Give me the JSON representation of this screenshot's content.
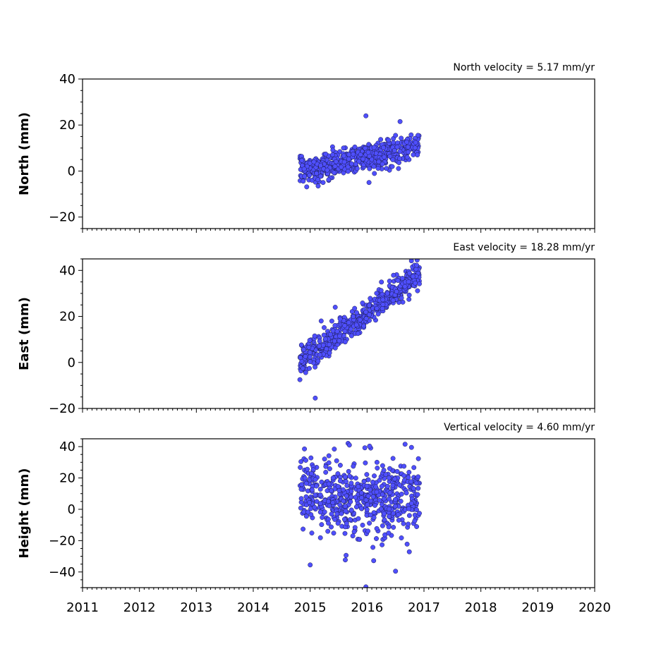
{
  "chart_data": [
    {
      "type": "scatter",
      "title": "North velocity = 5.17 mm/yr",
      "ylabel": "North (mm)",
      "xlabel": "",
      "xlim": [
        2011,
        2020
      ],
      "ylim": [
        -25,
        40
      ],
      "yticks": [
        -20,
        0,
        20,
        40
      ],
      "ytick_labels": [
        "−20",
        "0",
        "20",
        "40"
      ],
      "xticks": [
        2011,
        2012,
        2013,
        2014,
        2015,
        2016,
        2017,
        2018,
        2019,
        2020
      ],
      "velocity_mm_per_yr": 5.17,
      "noise_sd_mm": 3.0,
      "data_range_years": [
        2014.82,
        2016.92
      ],
      "outliers": [
        [
          2015.98,
          24
        ],
        [
          2016.58,
          21.5
        ],
        [
          2015.14,
          -6.5
        ]
      ],
      "marker_color": "#4f4fff"
    },
    {
      "type": "scatter",
      "title": "East velocity = 18.28 mm/yr",
      "ylabel": "East (mm)",
      "xlabel": "",
      "xlim": [
        2011,
        2020
      ],
      "ylim": [
        -20,
        45
      ],
      "yticks": [
        -20,
        0,
        20,
        40
      ],
      "ytick_labels": [
        "−20",
        "0",
        "20",
        "40"
      ],
      "xticks": [
        2011,
        2012,
        2013,
        2014,
        2015,
        2016,
        2017,
        2018,
        2019,
        2020
      ],
      "velocity_mm_per_yr": 18.28,
      "noise_sd_mm": 3.0,
      "data_range_years": [
        2014.82,
        2016.92
      ],
      "outliers": [
        [
          2015.09,
          -15.5
        ],
        [
          2016.88,
          44.5
        ],
        [
          2015.44,
          24
        ],
        [
          2014.82,
          -7.5
        ]
      ],
      "marker_color": "#4f4fff"
    },
    {
      "type": "scatter",
      "title": "Vertical velocity = 4.60 mm/yr",
      "ylabel": "Height (mm)",
      "xlabel": "",
      "xlim": [
        2011,
        2020
      ],
      "ylim": [
        -50,
        45
      ],
      "yticks": [
        -40,
        -20,
        0,
        20,
        40
      ],
      "ytick_labels": [
        "−40",
        "−20",
        "0",
        "20",
        "40"
      ],
      "xticks": [
        2011,
        2012,
        2013,
        2014,
        2015,
        2016,
        2017,
        2018,
        2019,
        2020
      ],
      "xtick_labels": [
        "2011",
        "2012",
        "2013",
        "2014",
        "2015",
        "2016",
        "2017",
        "2018",
        "2019",
        "2020"
      ],
      "velocity_mm_per_yr": 4.6,
      "noise_sd_mm": 13.0,
      "data_range_years": [
        2014.82,
        2016.92
      ],
      "outliers": [
        [
          2015.98,
          -49.5
        ],
        [
          2015.69,
          41
        ],
        [
          2016.5,
          -39.5
        ],
        [
          2015.0,
          -35.5
        ],
        [
          2014.9,
          38.5
        ],
        [
          2016.78,
          39.5
        ]
      ],
      "marker_color": "#4f4fff"
    }
  ]
}
